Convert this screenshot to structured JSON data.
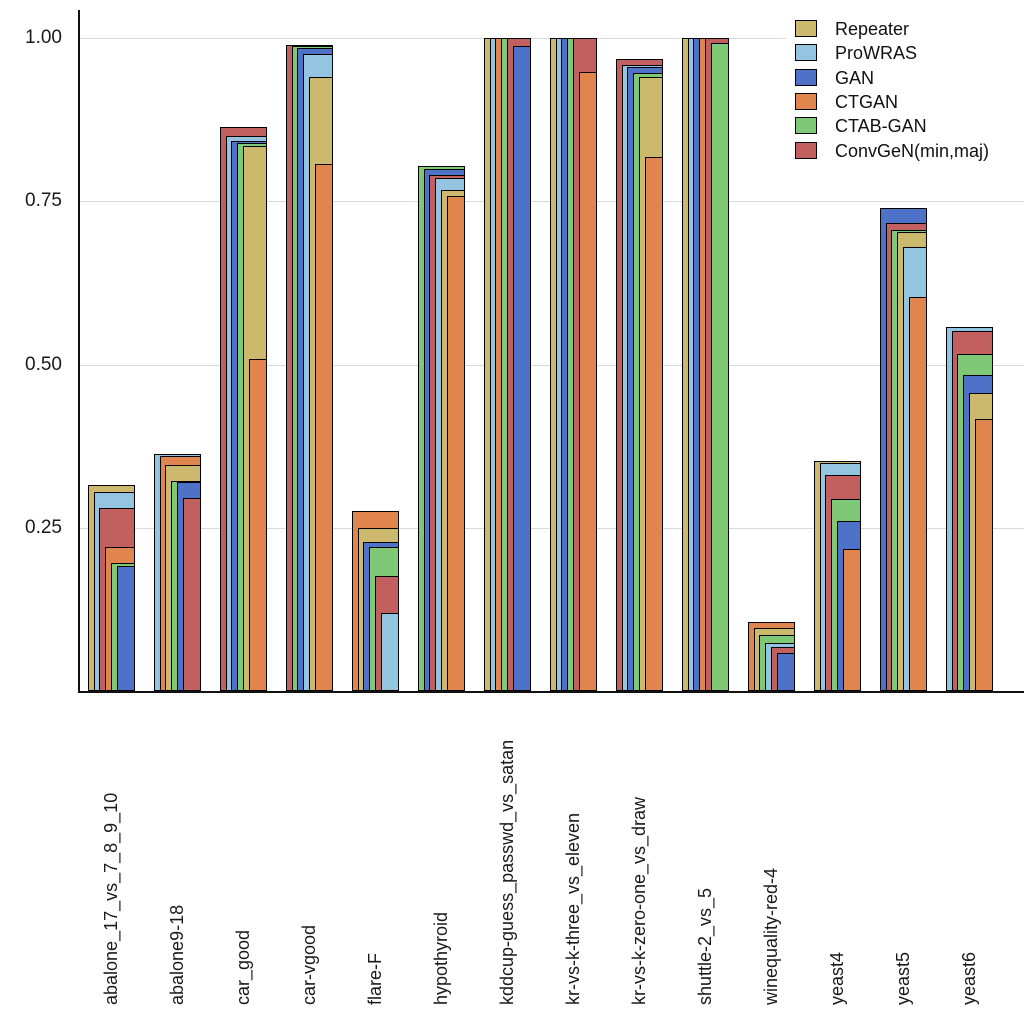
{
  "chart_data": {
    "type": "bar",
    "variant": "overlaid-nested-bars-right-aligned-width-by-rank",
    "title": "",
    "xlabel": "",
    "ylabel": "",
    "ylim": [
      0,
      1.045
    ],
    "yticks": [
      0.25,
      0.5,
      0.75,
      1.0
    ],
    "ytick_labels": [
      "0.25",
      "0.50",
      "0.75",
      "1.00"
    ],
    "grid": "horizontal",
    "legend_position": "top-right",
    "categories": [
      "abalone_17_vs_7_8_9_10",
      "abalone9-18",
      "car_good",
      "car-vgood",
      "flare-F",
      "hypothyroid",
      "kddcup-guess_passwd_vs_satan",
      "kr-vs-k-three_vs_eleven",
      "kr-vs-k-zero-one_vs_draw",
      "shuttle-2_vs_5",
      "winequality-red-4",
      "yeast4",
      "yeast5",
      "yeast6"
    ],
    "series": [
      {
        "name": "Repeater",
        "color": "#CCB96E",
        "values": [
          0.315,
          0.346,
          0.835,
          0.94,
          0.25,
          0.767,
          1.0,
          1.0,
          0.941,
          1.0,
          0.096,
          0.352,
          0.703,
          0.457
        ]
      },
      {
        "name": "ProWRAS",
        "color": "#93C5E1",
        "values": [
          0.305,
          0.363,
          0.85,
          0.976,
          0.12,
          0.785,
          1.0,
          1.0,
          0.958,
          1.0,
          0.073,
          0.349,
          0.68,
          0.558
        ]
      },
      {
        "name": "GAN",
        "color": "#4D72C7",
        "values": [
          0.192,
          0.32,
          0.843,
          0.985,
          0.228,
          0.799,
          0.988,
          1.0,
          0.956,
          1.0,
          0.058,
          0.261,
          0.739,
          0.484
        ]
      },
      {
        "name": "CTGAN",
        "color": "#E0854E",
        "values": [
          0.221,
          0.36,
          0.508,
          0.807,
          0.275,
          0.758,
          1.0,
          0.948,
          0.818,
          1.0,
          0.105,
          0.218,
          0.603,
          0.417
        ]
      },
      {
        "name": "CTAB-GAN",
        "color": "#7FC876",
        "values": [
          0.196,
          0.322,
          0.839,
          0.988,
          0.22,
          0.804,
          1.0,
          1.0,
          0.946,
          0.993,
          0.086,
          0.294,
          0.706,
          0.516
        ]
      },
      {
        "name": "ConvGeN(min,maj)",
        "color": "#C26060",
        "values": [
          0.28,
          0.296,
          0.863,
          0.99,
          0.176,
          0.79,
          1.0,
          1.0,
          0.968,
          1.0,
          0.068,
          0.331,
          0.717,
          0.552
        ]
      }
    ]
  },
  "colors": {
    "gridline": "#d9d9d9",
    "axis": "#111111",
    "bar_border": "#000000",
    "text": "#1a1a1a",
    "background": "#ffffff"
  }
}
